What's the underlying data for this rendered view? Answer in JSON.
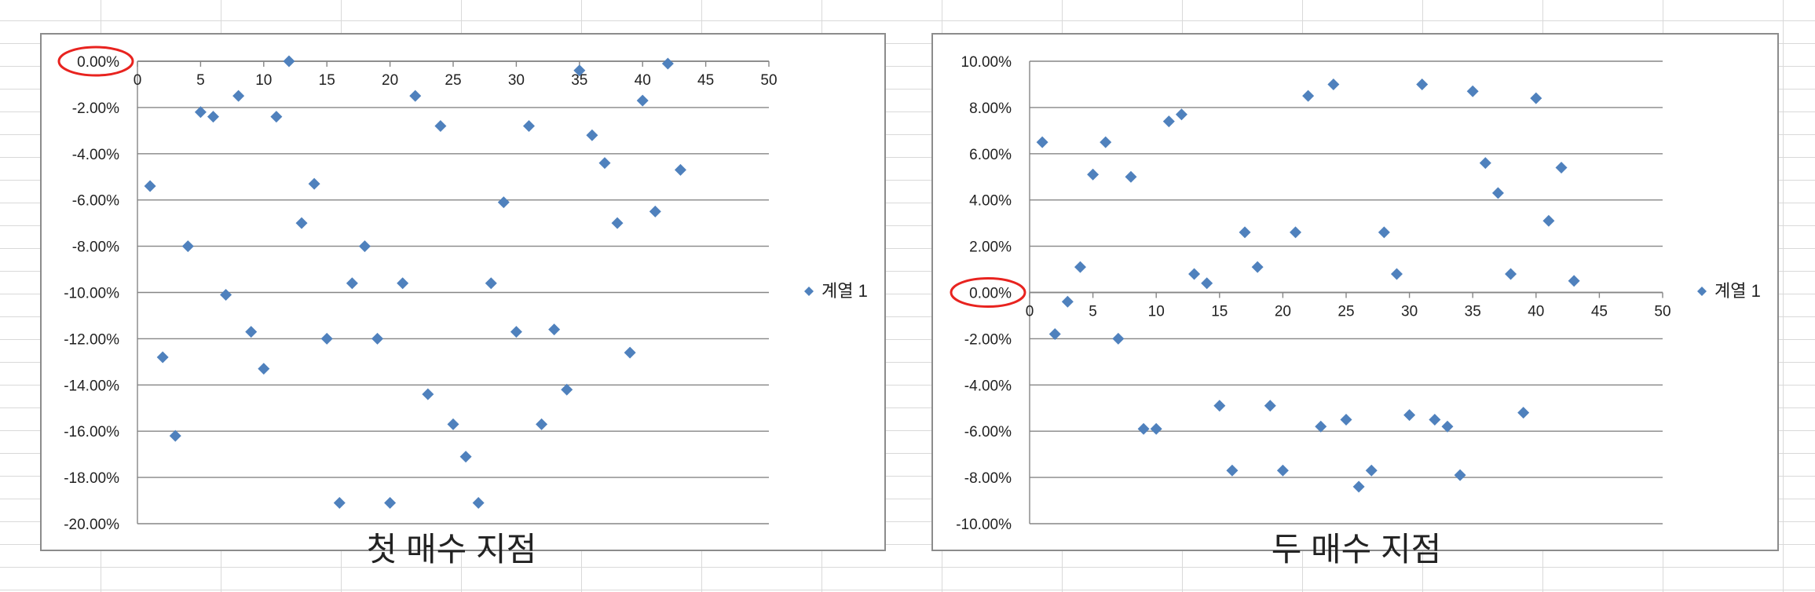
{
  "colors": {
    "marker": "#4f81bd",
    "gridline": "#868686",
    "frame": "#8c8c8c",
    "highlight": "#e8231f",
    "sheet_grid": "#d9d9d9"
  },
  "chart_data": [
    {
      "type": "scatter",
      "title": "첫 매수 지점",
      "xlim": [
        0,
        50
      ],
      "ylim": [
        -0.2,
        0.0
      ],
      "x_ticks": [
        "0",
        "5",
        "10",
        "15",
        "20",
        "25",
        "30",
        "35",
        "40",
        "45",
        "50"
      ],
      "y_ticks": [
        "0.00%",
        "-2.00%",
        "-4.00%",
        "-6.00%",
        "-8.00%",
        "-10.00%",
        "-12.00%",
        "-14.00%",
        "-16.00%",
        "-18.00%",
        "-20.00%"
      ],
      "y_tick_values": [
        0,
        -0.02,
        -0.04,
        -0.06,
        -0.08,
        -0.1,
        -0.12,
        -0.14,
        -0.16,
        -0.18,
        -0.2
      ],
      "x_tick_values": [
        0,
        5,
        10,
        15,
        20,
        25,
        30,
        35,
        40,
        45,
        50
      ],
      "highlighted_tick": "0.00%",
      "x_axis_crosses_at": 0,
      "legend": {
        "label": "계열 1",
        "position": "right"
      },
      "grid": true,
      "series": [
        {
          "name": "계열 1",
          "points": [
            [
              1,
              -0.054
            ],
            [
              2,
              -0.128
            ],
            [
              3,
              -0.162
            ],
            [
              4,
              -0.08
            ],
            [
              5,
              -0.022
            ],
            [
              6,
              -0.024
            ],
            [
              7,
              -0.101
            ],
            [
              8,
              -0.015
            ],
            [
              9,
              -0.117
            ],
            [
              10,
              -0.133
            ],
            [
              11,
              -0.024
            ],
            [
              12,
              0.0
            ],
            [
              13,
              -0.07
            ],
            [
              14,
              -0.053
            ],
            [
              15,
              -0.12
            ],
            [
              16,
              -0.191
            ],
            [
              17,
              -0.096
            ],
            [
              18,
              -0.08
            ],
            [
              19,
              -0.12
            ],
            [
              20,
              -0.191
            ],
            [
              21,
              -0.096
            ],
            [
              22,
              -0.015
            ],
            [
              23,
              -0.144
            ],
            [
              24,
              -0.028
            ],
            [
              25,
              -0.157
            ],
            [
              26,
              -0.171
            ],
            [
              27,
              -0.191
            ],
            [
              28,
              -0.096
            ],
            [
              29,
              -0.061
            ],
            [
              30,
              -0.117
            ],
            [
              31,
              -0.028
            ],
            [
              32,
              -0.157
            ],
            [
              33,
              -0.116
            ],
            [
              34,
              -0.142
            ],
            [
              35,
              -0.004
            ],
            [
              36,
              -0.032
            ],
            [
              37,
              -0.044
            ],
            [
              38,
              -0.07
            ],
            [
              39,
              -0.126
            ],
            [
              40,
              -0.017
            ],
            [
              41,
              -0.065
            ],
            [
              42,
              -0.001
            ],
            [
              43,
              -0.047
            ]
          ]
        }
      ]
    },
    {
      "type": "scatter",
      "title": "두 매수 지점",
      "xlim": [
        0,
        50
      ],
      "ylim": [
        -0.1,
        0.1
      ],
      "x_ticks": [
        "0",
        "5",
        "10",
        "15",
        "20",
        "25",
        "30",
        "35",
        "40",
        "45",
        "50"
      ],
      "y_ticks": [
        "10.00%",
        "8.00%",
        "6.00%",
        "4.00%",
        "2.00%",
        "0.00%",
        "-2.00%",
        "-4.00%",
        "-6.00%",
        "-8.00%",
        "-10.00%"
      ],
      "y_tick_values": [
        0.1,
        0.08,
        0.06,
        0.04,
        0.02,
        0,
        -0.02,
        -0.04,
        -0.06,
        -0.08,
        -0.1
      ],
      "x_tick_values": [
        0,
        5,
        10,
        15,
        20,
        25,
        30,
        35,
        40,
        45,
        50
      ],
      "highlighted_tick": "0.00%",
      "x_axis_crosses_at": 0,
      "legend": {
        "label": "계열 1",
        "position": "right"
      },
      "grid": true,
      "series": [
        {
          "name": "계열 1",
          "points": [
            [
              1,
              0.065
            ],
            [
              2,
              -0.018
            ],
            [
              3,
              -0.004
            ],
            [
              4,
              0.011
            ],
            [
              5,
              0.051
            ],
            [
              6,
              0.065
            ],
            [
              7,
              -0.02
            ],
            [
              8,
              0.05
            ],
            [
              9,
              -0.059
            ],
            [
              10,
              -0.059
            ],
            [
              11,
              0.074
            ],
            [
              12,
              0.077
            ],
            [
              13,
              0.008
            ],
            [
              14,
              0.004
            ],
            [
              15,
              -0.049
            ],
            [
              16,
              -0.077
            ],
            [
              17,
              0.026
            ],
            [
              18,
              0.011
            ],
            [
              19,
              -0.049
            ],
            [
              20,
              -0.077
            ],
            [
              21,
              0.026
            ],
            [
              22,
              0.085
            ],
            [
              23,
              -0.058
            ],
            [
              24,
              0.09
            ],
            [
              25,
              -0.055
            ],
            [
              26,
              -0.084
            ],
            [
              27,
              -0.077
            ],
            [
              28,
              0.026
            ],
            [
              29,
              0.008
            ],
            [
              30,
              -0.053
            ],
            [
              31,
              0.09
            ],
            [
              32,
              -0.055
            ],
            [
              33,
              -0.058
            ],
            [
              34,
              -0.079
            ],
            [
              35,
              0.087
            ],
            [
              36,
              0.056
            ],
            [
              37,
              0.043
            ],
            [
              38,
              0.008
            ],
            [
              39,
              -0.052
            ],
            [
              40,
              0.084
            ],
            [
              41,
              0.031
            ],
            [
              42,
              0.054
            ],
            [
              43,
              0.005
            ]
          ]
        }
      ]
    }
  ]
}
